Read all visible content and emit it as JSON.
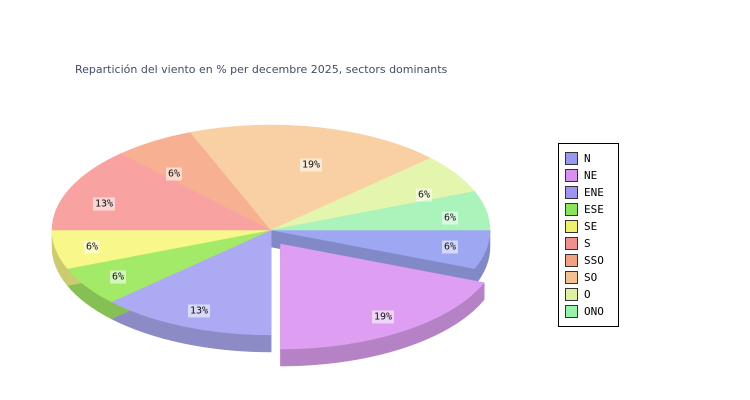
{
  "chart_data": {
    "type": "pie",
    "style": "3d-exploded",
    "title": "Repartición del viento en % per decembre 2025, sectors dominants",
    "unit": "%",
    "direction": "clockwise",
    "start_angle_deg": 0,
    "labels": [
      "N",
      "NE",
      "ENE",
      "ESE",
      "SE",
      "S",
      "SSO",
      "SO",
      "O",
      "ONO"
    ],
    "values": [
      6,
      19,
      13,
      6,
      6,
      13,
      6,
      19,
      6,
      6
    ],
    "percent_labels": [
      "6%",
      "19%",
      "13%",
      "6%",
      "6%",
      "13%",
      "6%",
      "19%",
      "6%",
      "6%"
    ],
    "slice_colors": [
      "#9da7f2",
      "#de9ff2",
      "#abaaf2",
      "#a3ea68",
      "#f7f78a",
      "#f9a2a2",
      "#f8b093",
      "#f9d0a4",
      "#e4f5ad",
      "#aaf3ba"
    ],
    "legend_colors": [
      "#9898ee",
      "#d88fee",
      "#9d95ee",
      "#8be55c",
      "#f0f070",
      "#f08f8f",
      "#f2a283",
      "#f4bf92",
      "#dcf2a2",
      "#98f0ab"
    ],
    "exploded_index": 1,
    "legend_position": "right"
  },
  "style": {
    "background": "#ffffff",
    "title_color": "#424d66",
    "label_text_color": "#111111",
    "label_background": "rgba(255,255,255,0.55)",
    "legend_border_color": "#000000",
    "legend_text_color": "#000000"
  }
}
